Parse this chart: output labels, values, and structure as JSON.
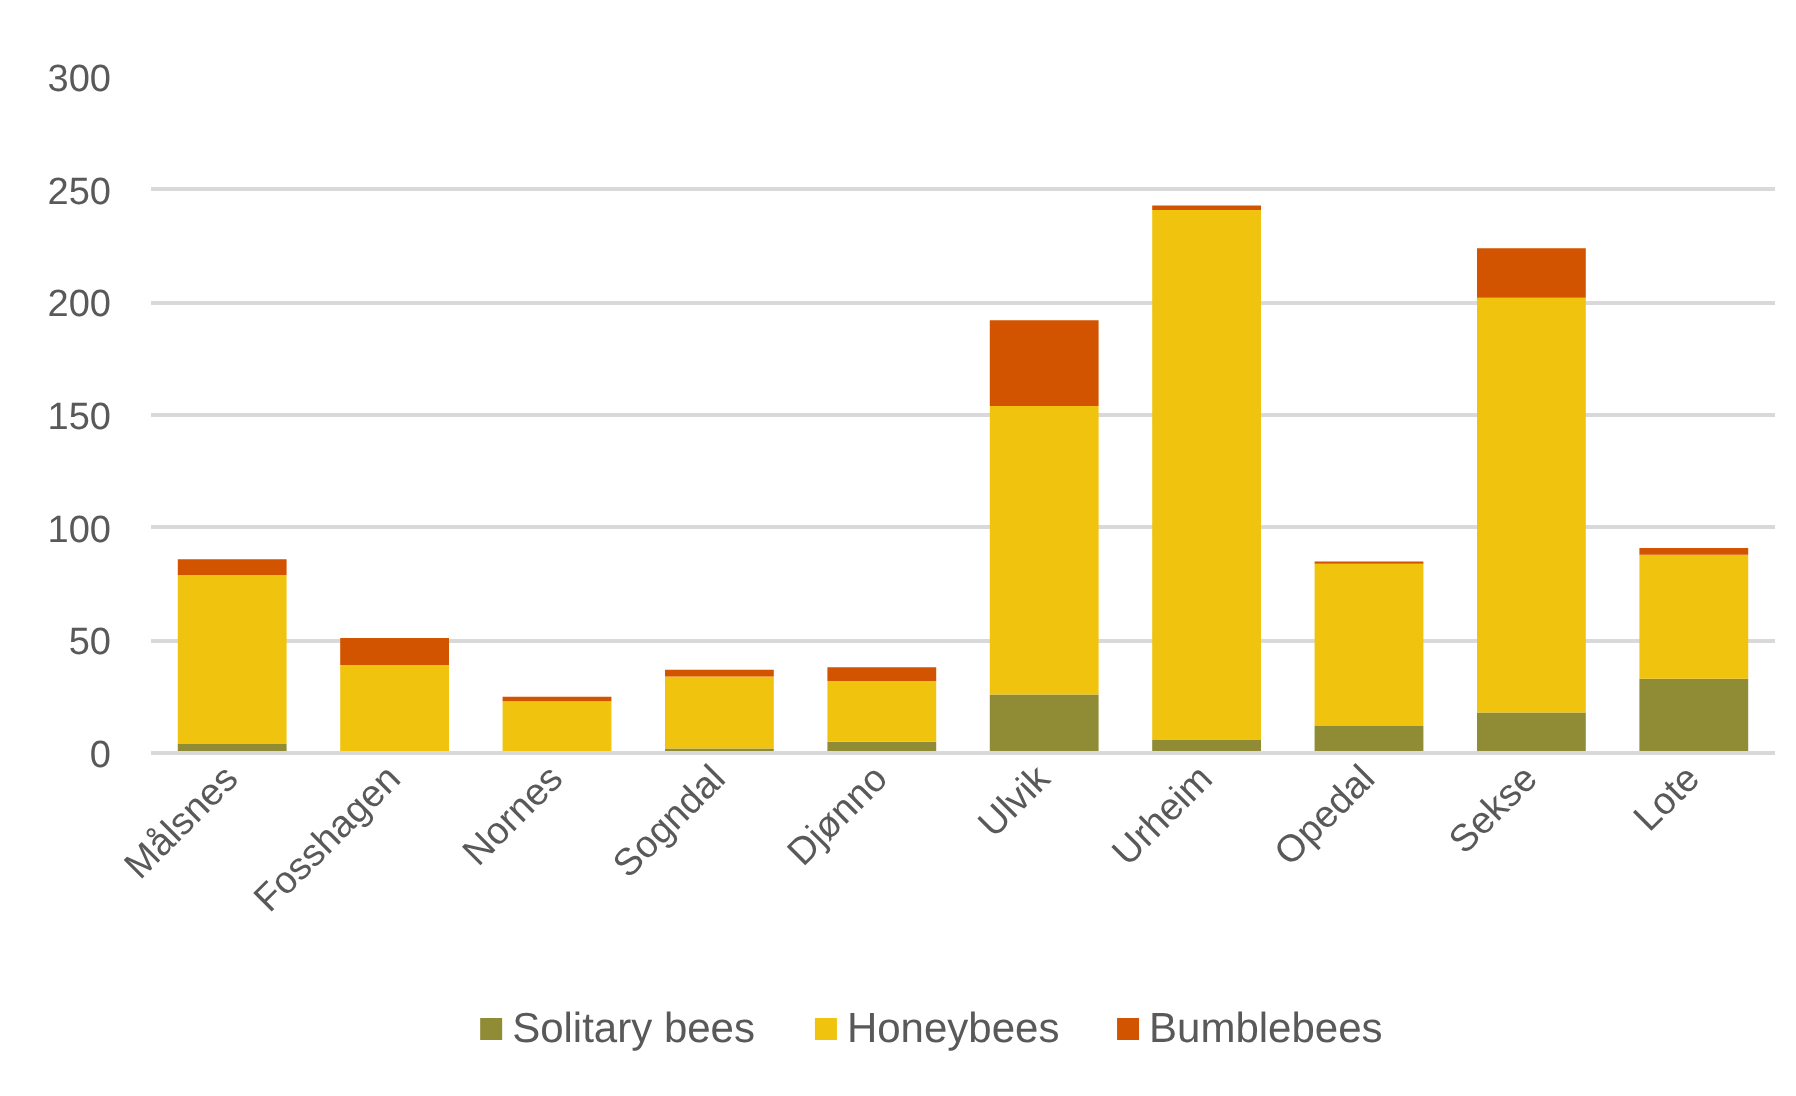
{
  "chart_data": {
    "type": "bar",
    "stacked": true,
    "categories": [
      "Målsnes",
      "Fosshagen",
      "Nornes",
      "Sogndal",
      "Djønno",
      "Ulvik",
      "Urheim",
      "Opedal",
      "Sekse",
      "Lote"
    ],
    "series": [
      {
        "name": "Solitary bees",
        "color": "#8f8c35",
        "values": [
          4,
          0,
          0,
          2,
          5,
          26,
          6,
          12,
          18,
          33
        ]
      },
      {
        "name": "Honeybees",
        "color": "#f0c30f",
        "values": [
          75,
          39,
          23,
          32,
          27,
          128,
          235,
          72,
          184,
          55
        ]
      },
      {
        "name": "Bumblebees",
        "color": "#d35400",
        "values": [
          7,
          12,
          2,
          3,
          6,
          38,
          2,
          1,
          22,
          3
        ]
      }
    ],
    "ylim": [
      0,
      300
    ],
    "yticks": [
      0,
      50,
      100,
      150,
      200,
      250,
      300
    ],
    "grid": "y",
    "legend": "bottom"
  }
}
